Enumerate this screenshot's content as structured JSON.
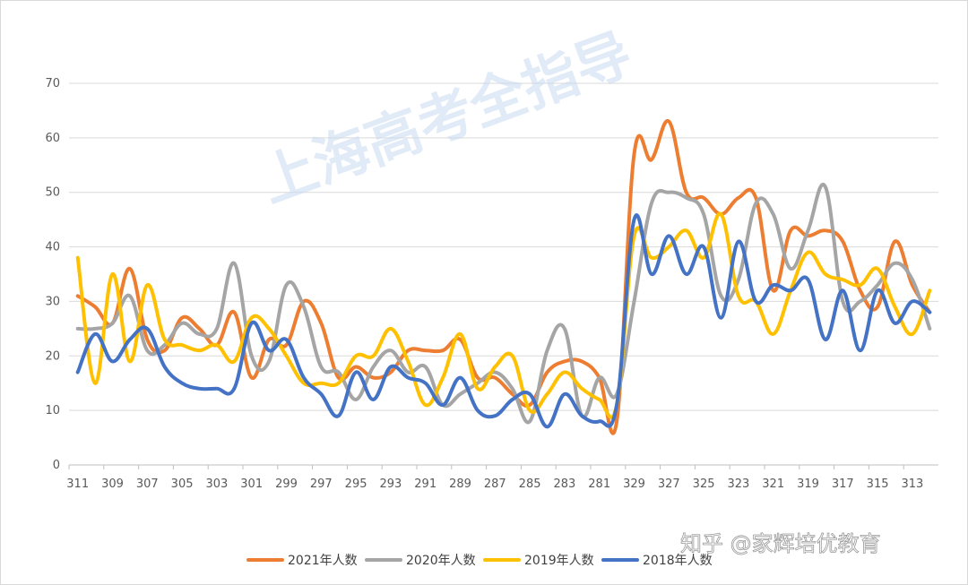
{
  "watermark": "上海高考全指导",
  "source_mark": "知乎 @家辉培优教育",
  "chart_data": {
    "type": "line",
    "title": "",
    "xlabel": "",
    "ylabel": "",
    "ylim": [
      0,
      70
    ],
    "yticks": [
      0,
      10,
      20,
      30,
      40,
      50,
      60,
      70
    ],
    "grid": true,
    "legend_position": "bottom",
    "x_tick_labels": [
      "311",
      "309",
      "307",
      "305",
      "303",
      "301",
      "299",
      "297",
      "295",
      "293",
      "291",
      "289",
      "287",
      "285",
      "283",
      "281",
      "329",
      "327",
      "325",
      "323",
      "321",
      "319",
      "317",
      "315",
      "313"
    ],
    "series": [
      {
        "name": "2021年人数",
        "color": "#ED7D31",
        "values": [
          31,
          29,
          26,
          36,
          23,
          21,
          27,
          25,
          22,
          28,
          16,
          23,
          22,
          30,
          26,
          16,
          18,
          16,
          17,
          21,
          21,
          21,
          23,
          16,
          16,
          13,
          11,
          17,
          19,
          19,
          16,
          8,
          57,
          56,
          63,
          50,
          49,
          46,
          49,
          49,
          32,
          43,
          42,
          43,
          41,
          32,
          29,
          41,
          33,
          28
        ]
      },
      {
        "name": "2020年人数",
        "color": "#A5A5A5",
        "values": [
          25,
          25,
          26,
          31,
          21,
          22,
          26,
          24,
          25,
          37,
          20,
          19,
          33,
          29,
          18,
          17,
          12,
          18,
          21,
          17,
          18,
          11,
          13,
          15,
          17,
          14,
          8,
          21,
          25,
          9,
          16,
          13,
          30,
          48,
          50,
          49,
          46,
          31,
          34,
          48,
          46,
          36,
          43,
          51,
          30,
          30,
          33,
          37,
          34,
          25
        ]
      },
      {
        "name": "2019年人数",
        "color": "#FFC000",
        "values": [
          38,
          15,
          35,
          19,
          33,
          23,
          22,
          21,
          22,
          19,
          27,
          25,
          20,
          15,
          15,
          15,
          20,
          20,
          25,
          19,
          11,
          16,
          24,
          14,
          18,
          20,
          10,
          13,
          17,
          14,
          12,
          11,
          42,
          38,
          40,
          43,
          38,
          46,
          31,
          30,
          24,
          32,
          39,
          35,
          34,
          33,
          36,
          29,
          24,
          32
        ]
      },
      {
        "name": "2018年人数",
        "color": "#4472C4",
        "values": [
          17,
          24,
          19,
          23,
          25,
          18,
          15,
          14,
          14,
          14,
          26,
          21,
          23,
          16,
          13,
          9,
          17,
          12,
          18,
          16,
          15,
          11,
          16,
          10,
          9,
          12,
          13,
          7,
          13,
          9,
          8,
          11,
          45,
          35,
          42,
          35,
          40,
          27,
          41,
          30,
          33,
          32,
          34,
          23,
          32,
          21,
          32,
          26,
          30,
          28
        ]
      }
    ]
  }
}
